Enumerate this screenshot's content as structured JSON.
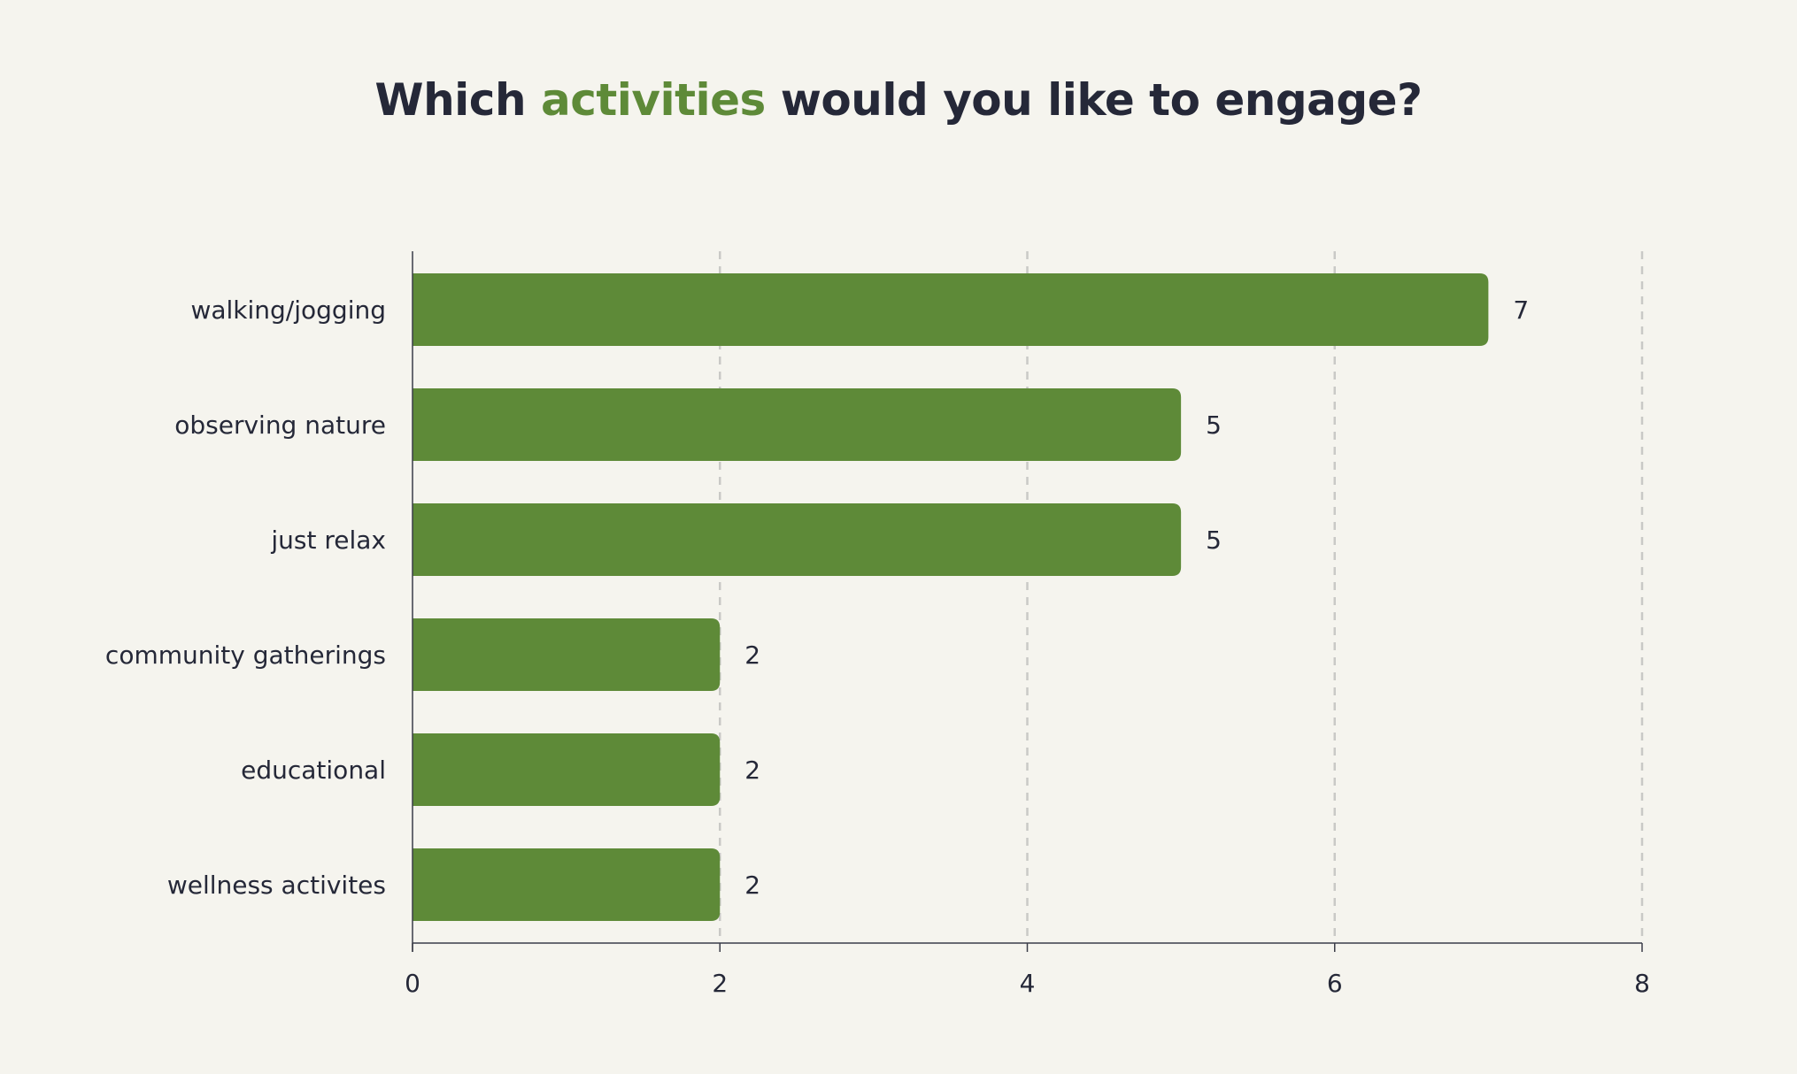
{
  "title": {
    "prefix": "Which ",
    "highlight": "activities",
    "suffix": " would you like to engage?"
  },
  "colors": {
    "background": "#f5f4ee",
    "bar": "#5e8a38",
    "text": "#252838",
    "accent": "#5e8a38",
    "grid": "#c9c9c6",
    "axis": "#3a3c48"
  },
  "chart_data": {
    "type": "bar",
    "orientation": "horizontal",
    "title": "Which activities would you like to engage?",
    "categories": [
      "walking/jogging",
      "observing nature",
      "just relax",
      "community gatherings",
      "educational",
      "wellness activites"
    ],
    "values": [
      7,
      5,
      5,
      2,
      2,
      2
    ],
    "xlim": [
      0,
      8
    ],
    "xticks": [
      "0",
      "2",
      "4",
      "6",
      "8"
    ],
    "xlabel": "",
    "ylabel": "",
    "grid": "vertical dashed",
    "data_labels": true
  }
}
